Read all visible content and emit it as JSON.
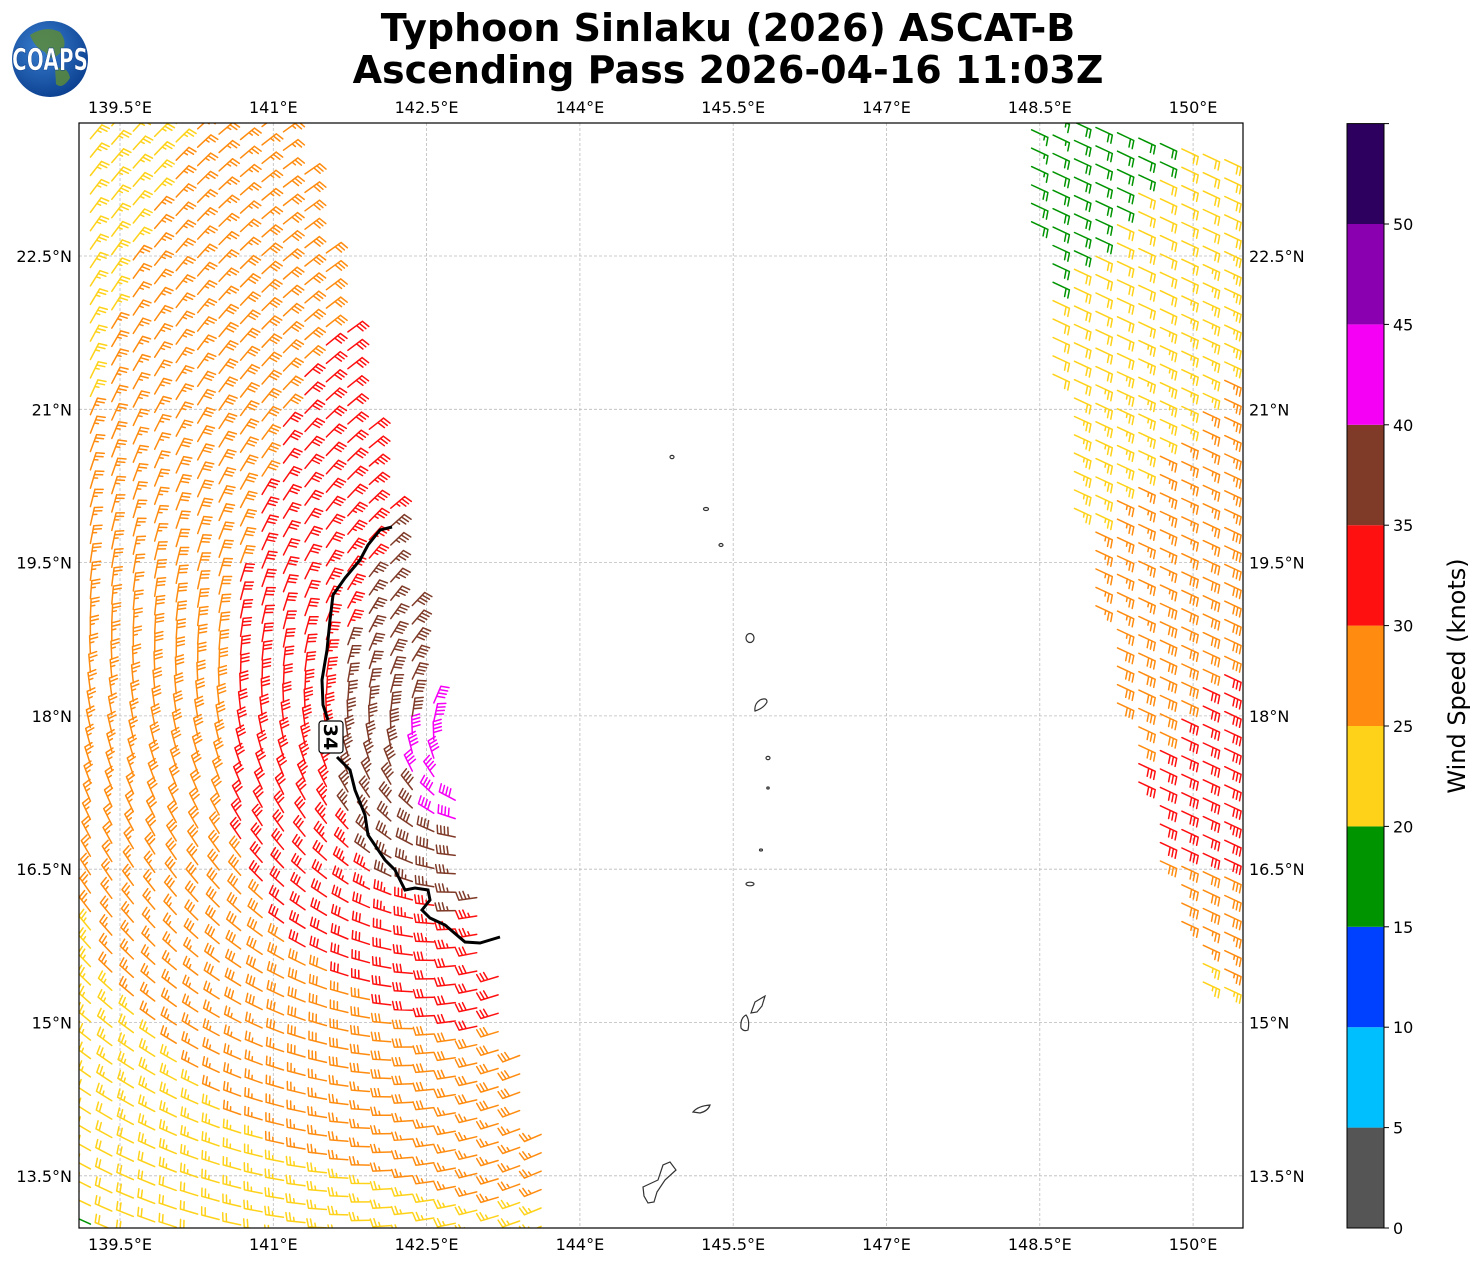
{
  "title": {
    "line1": "Typhoon Sinlaku (2026) ASCAT-B",
    "line2": "Ascending Pass 2026-04-16 11:03Z"
  },
  "logo": {
    "text": "COAPS"
  },
  "chart_data": {
    "type": "wind-barb map",
    "lon_range": [
      139.1,
      150.5
    ],
    "lat_range": [
      13.0,
      23.8
    ],
    "lon_ticks": [
      139.5,
      141,
      142.5,
      144,
      145.5,
      147,
      148.5,
      150
    ],
    "lon_tick_labels": [
      "139.5°E",
      "141°E",
      "142.5°E",
      "144°E",
      "145.5°E",
      "147°E",
      "148.5°E",
      "150°E"
    ],
    "lat_ticks": [
      22.5,
      21,
      19.5,
      18,
      16.5,
      15,
      13.5
    ],
    "lat_tick_labels": [
      "22.5°N",
      "21°N",
      "19.5°N",
      "18°N",
      "16.5°N",
      "15°N",
      "13.5°N"
    ],
    "grid": true,
    "wind_contour_label": "34",
    "colorbar": {
      "label": "Wind Speed (knots)",
      "bounds": [
        0,
        5,
        10,
        15,
        20,
        25,
        30,
        35,
        40,
        45,
        50,
        55
      ],
      "tick_values": [
        0,
        5,
        10,
        15,
        20,
        25,
        30,
        35,
        40,
        45,
        50
      ],
      "tick_labels": [
        "0",
        "5",
        "10",
        "15",
        "20",
        "25",
        "30",
        "35",
        "40",
        "45",
        "50"
      ],
      "colors": [
        "#555555",
        "#00bfff",
        "#0040ff",
        "#009400",
        "#ffd21a",
        "#ff8c10",
        "#ff1010",
        "#7f3a28",
        "#f500f5",
        "#8a00b0",
        "#2d0060"
      ]
    }
  }
}
